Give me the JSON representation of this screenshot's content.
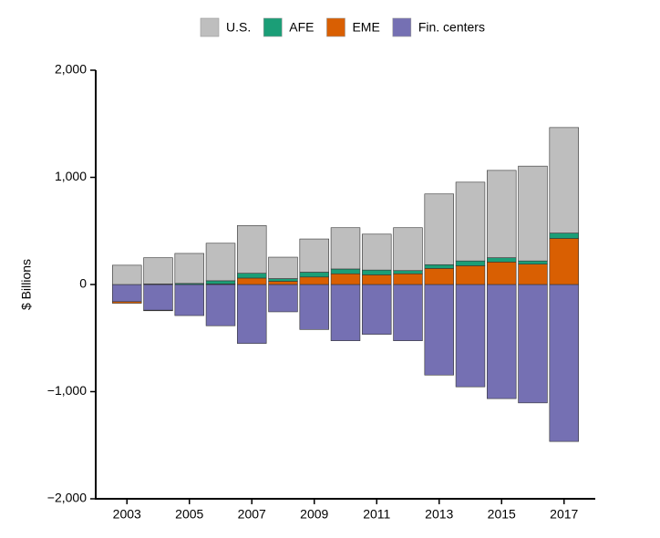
{
  "chart_data": {
    "type": "bar",
    "stacked": true,
    "y_label": "$ Billions",
    "x": [
      2003,
      2004,
      2005,
      2006,
      2007,
      2008,
      2009,
      2010,
      2011,
      2012,
      2013,
      2014,
      2015,
      2016,
      2017
    ],
    "xlim": [
      2002,
      2018
    ],
    "xticks": [
      2003,
      2005,
      2007,
      2009,
      2011,
      2013,
      2015,
      2017
    ],
    "ylim": [
      -2000,
      2000
    ],
    "yticks": [
      {
        "value": -2000,
        "label": "−2,000"
      },
      {
        "value": -1000,
        "label": "−1,000"
      },
      0,
      {
        "value": 1000,
        "label": "1,000"
      },
      {
        "value": 2000,
        "label": "2,000"
      }
    ],
    "series": [
      {
        "name": "U.S.",
        "color": "#bebebe",
        "values": [
          180,
          245,
          280,
          350,
          445,
          200,
          310,
          385,
          335,
          400,
          660,
          735,
          815,
          885,
          985
        ]
      },
      {
        "name": "AFE",
        "color": "#1b9e77",
        "values": [
          0,
          5,
          10,
          30,
          45,
          25,
          45,
          45,
          45,
          30,
          35,
          45,
          40,
          30,
          50
        ]
      },
      {
        "name": "EME",
        "color": "#d95f02",
        "values": [
          -15,
          -5,
          0,
          5,
          60,
          30,
          70,
          100,
          90,
          100,
          150,
          175,
          210,
          190,
          430
        ]
      },
      {
        "name": "Fin. centers",
        "color": "#7570b3",
        "values": [
          -160,
          -240,
          -290,
          -385,
          -550,
          -255,
          -420,
          -525,
          -465,
          -525,
          -845,
          -955,
          -1065,
          -1105,
          -1465
        ]
      }
    ]
  }
}
